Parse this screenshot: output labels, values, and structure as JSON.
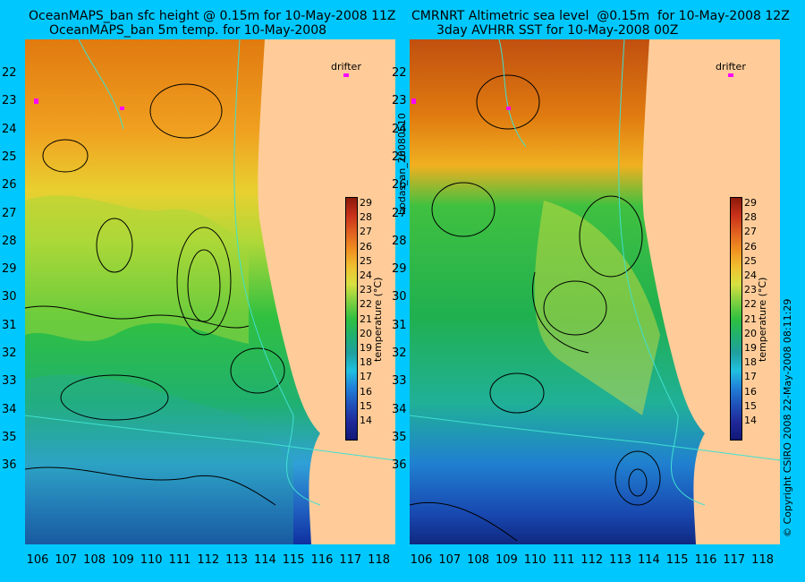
{
  "titles": {
    "left_line1": "OceanMAPS_ban sfc height @ 0.15m for 10-May-2008 11Z",
    "left_line2": "OceanMAPS_ban 5m temp. for 10-May-2008",
    "right_line1": "CMRNRT Altimetric sea level  @0.15m  for 10-May-2008 12Z",
    "right_line2": "3day AVHRR SST for 10-May-2008 00Z"
  },
  "latitudes": [
    "22",
    "23",
    "24",
    "25",
    "26",
    "27",
    "28",
    "29",
    "30",
    "31",
    "32",
    "33",
    "34",
    "35",
    "36"
  ],
  "longitudes": [
    "106",
    "107",
    "108",
    "109",
    "110",
    "111",
    "112",
    "113",
    "114",
    "115",
    "116",
    "117",
    "118"
  ],
  "colorbar": {
    "label": "temperature (°C)",
    "ticks": [
      "29",
      "28",
      "27",
      "26",
      "25",
      "24",
      "23",
      "22",
      "21",
      "20",
      "19",
      "18",
      "17",
      "16",
      "15",
      "14"
    ],
    "range": [
      14,
      29
    ]
  },
  "drifter_label": "drifter",
  "side_text_left": "bodas_an_20080510",
  "side_text_right": "© Copyright CSIRO 2008   22-May-2008 08:11:29",
  "colors": {
    "background": "#00C8FF",
    "land": "#FFCC99",
    "drifter": "#FF00FF",
    "bathymetry": "#40E0D0",
    "contours": "#000000"
  }
}
